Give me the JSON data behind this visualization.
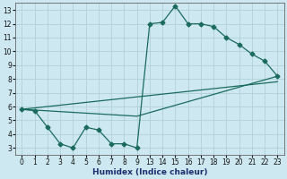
{
  "xlabel": "Humidex (Indice chaleur)",
  "bg_color": "#cde8f0",
  "grid_color": "#b0cfd8",
  "line_color": "#1a6b5e",
  "ylim": [
    2.5,
    13.5
  ],
  "yticks": [
    3,
    4,
    5,
    6,
    7,
    8,
    9,
    10,
    11,
    12,
    13
  ],
  "xtick_labels": [
    "0",
    "1",
    "2",
    "3",
    "4",
    "5",
    "6",
    "7",
    "8",
    "9",
    "13",
    "14",
    "15",
    "16",
    "17",
    "18",
    "19",
    "20",
    "21",
    "22",
    "23"
  ],
  "line1_xi": [
    0,
    1,
    2,
    3,
    4,
    5,
    6,
    7,
    8,
    9,
    10,
    11,
    12,
    13,
    14,
    15,
    16,
    17,
    18,
    19,
    20
  ],
  "line1_y": [
    5.8,
    5.7,
    4.5,
    3.3,
    3.0,
    4.5,
    4.3,
    3.3,
    3.3,
    3.0,
    12.0,
    12.1,
    13.3,
    12.0,
    12.0,
    11.8,
    11.0,
    10.5,
    9.8,
    9.3,
    8.2
  ],
  "line2_xi": [
    0,
    9,
    20
  ],
  "line2_y": [
    5.8,
    5.3,
    8.2
  ],
  "line3_xi": [
    0,
    20
  ],
  "line3_y": [
    5.8,
    7.8
  ],
  "marker": "D",
  "marker_size": 2.5,
  "line_width": 0.9,
  "tick_fontsize": 5.5,
  "xlabel_fontsize": 6.5
}
